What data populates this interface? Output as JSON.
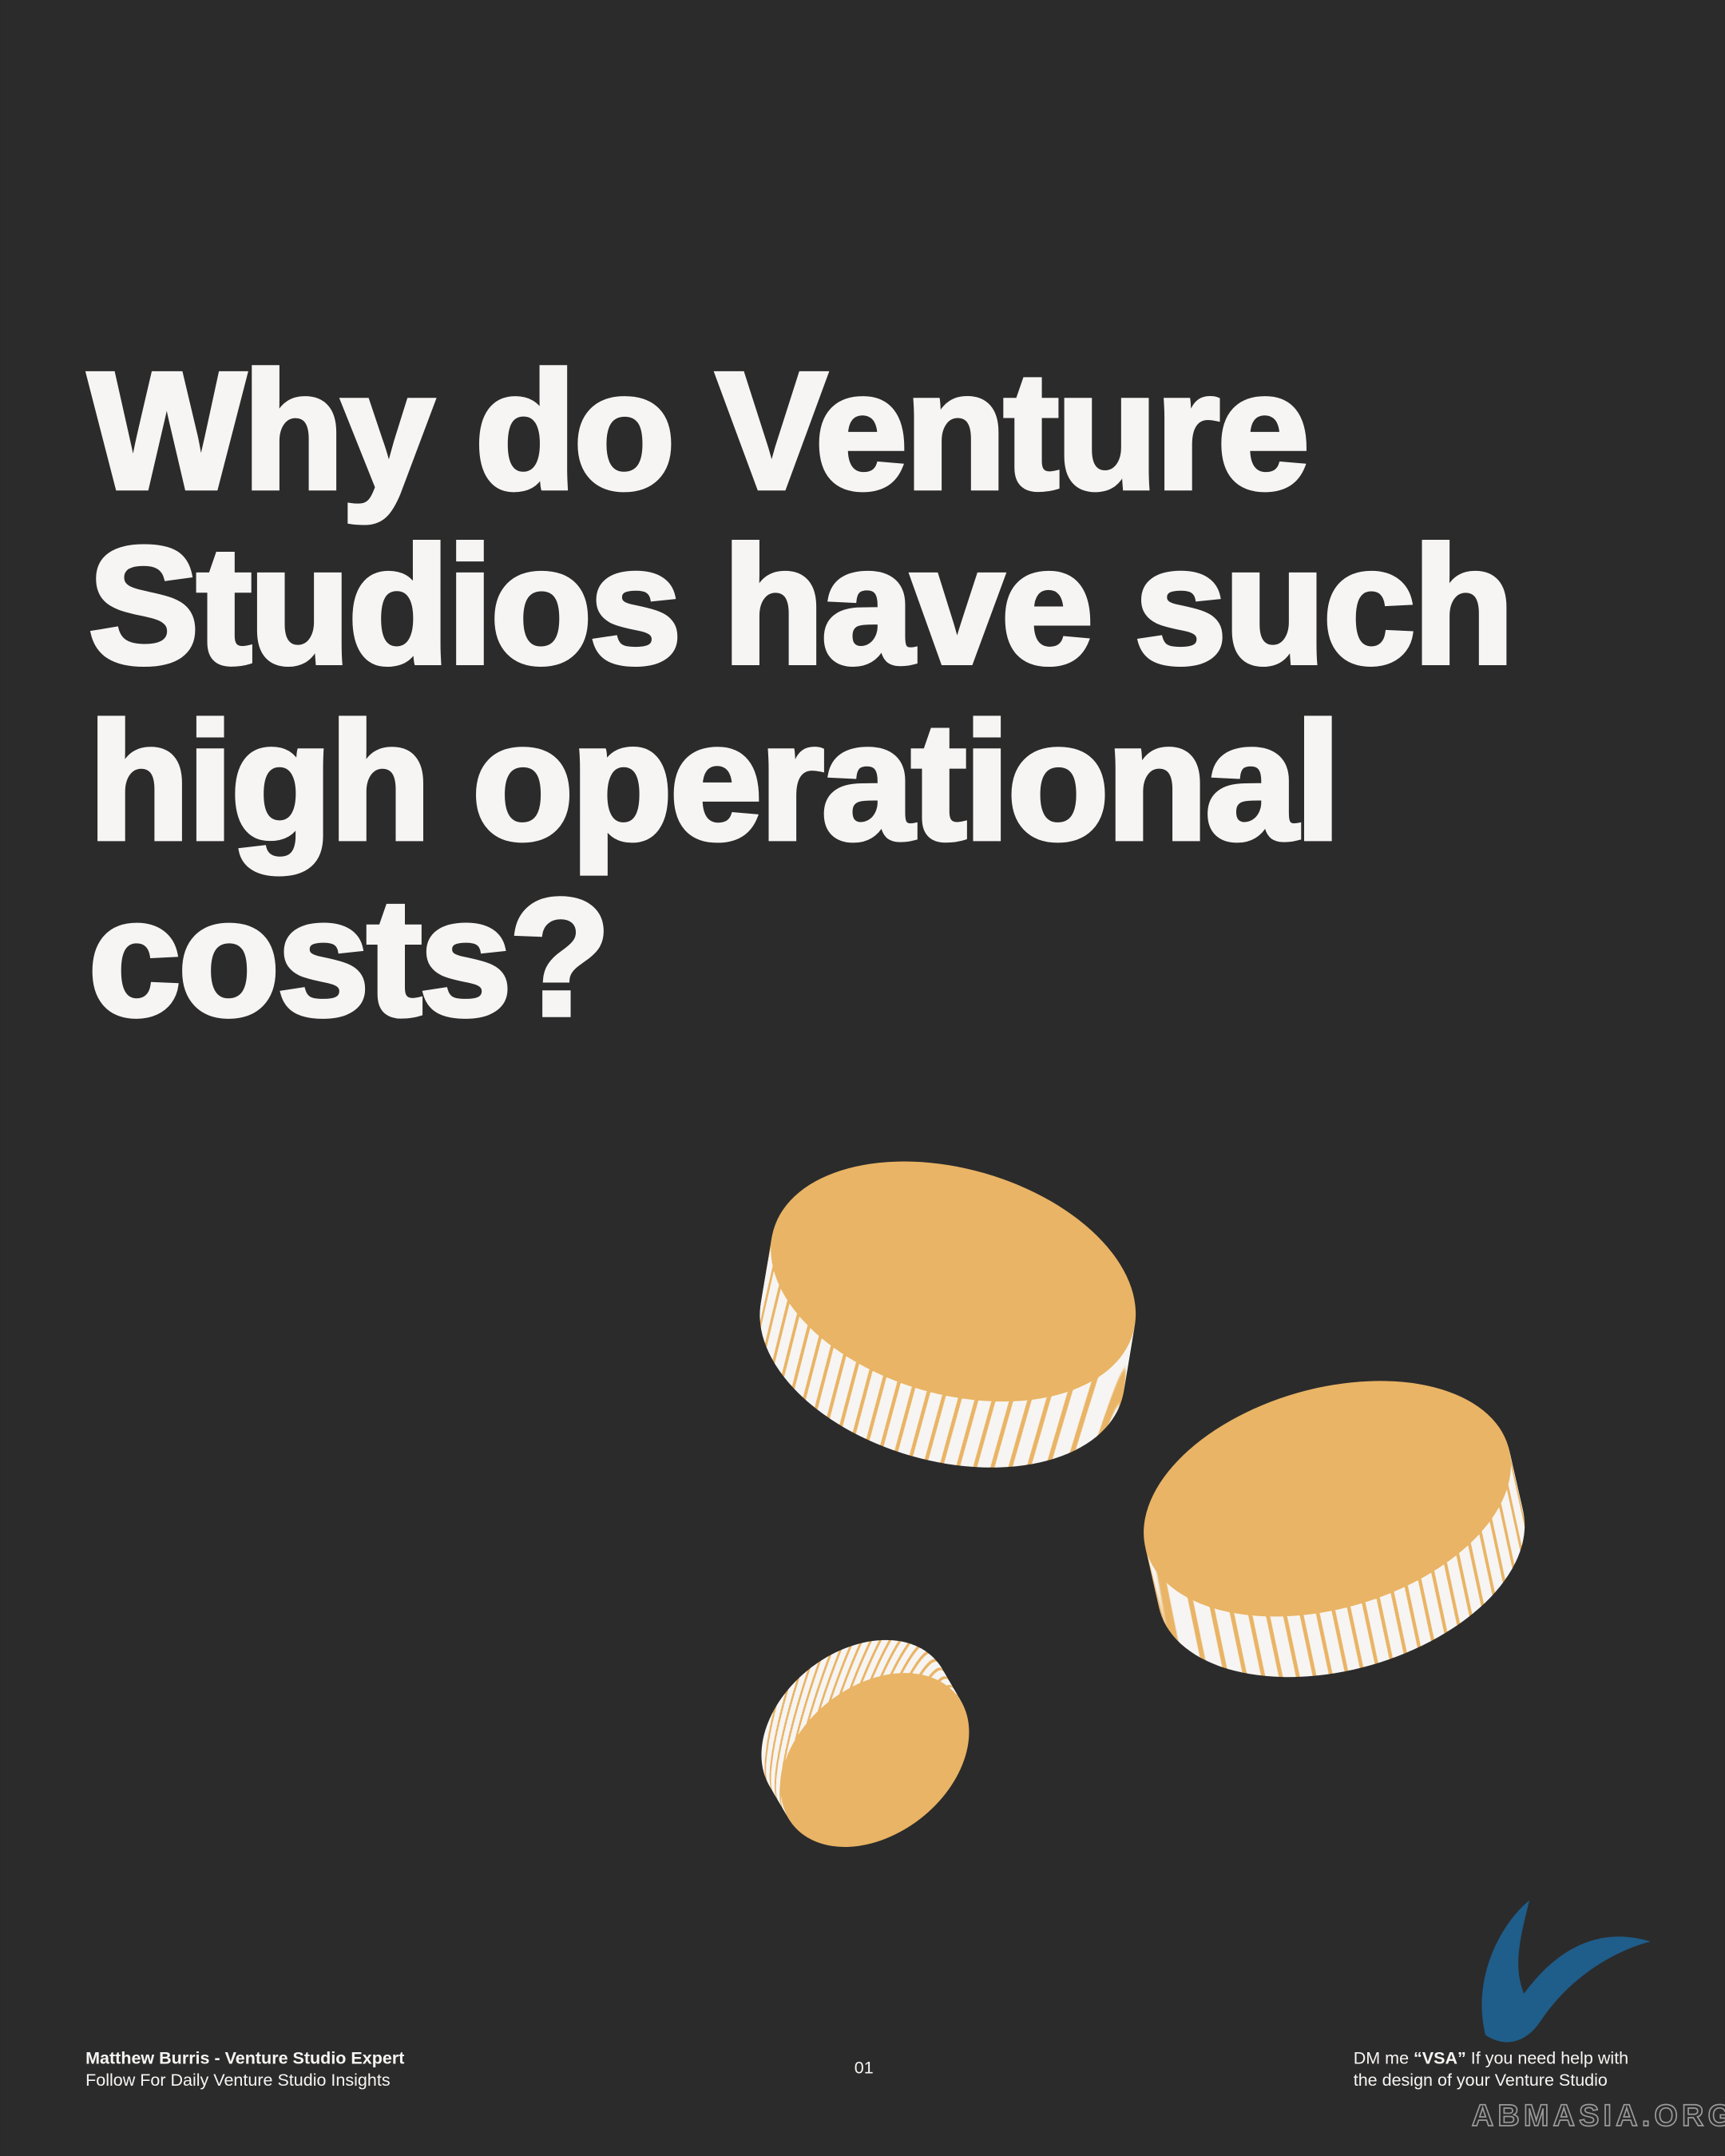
{
  "title": {
    "lines": [
      "Why do Venture",
      "Studios have such",
      "high operational",
      "costs?"
    ]
  },
  "footer": {
    "left": {
      "name": "Matthew Burris - Venture Studio Expert",
      "tagline": "Follow For Daily Venture Studio Insights"
    },
    "page_number": "01",
    "right": {
      "line1": [
        "DM me ",
        "“VSA”",
        " If you need help with"
      ],
      "line2": "the design of your Venture Studio"
    }
  },
  "watermark": "ABMASIA.ORG"
}
